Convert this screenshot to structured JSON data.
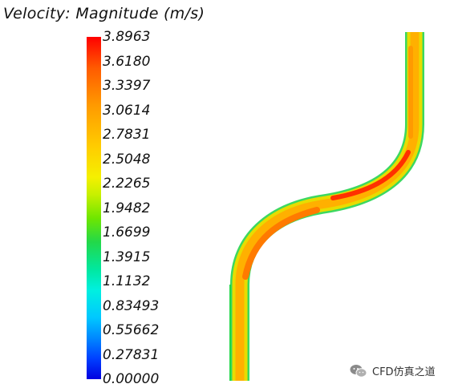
{
  "title": "Velocity: Magnitude (m/s)",
  "legend": {
    "ticks": [
      "3.8963",
      "3.6180",
      "3.3397",
      "3.0614",
      "2.7831",
      "2.5048",
      "2.2265",
      "1.9482",
      "1.6699",
      "1.3915",
      "1.1132",
      "0.83493",
      "0.55662",
      "0.27831",
      "0.00000"
    ]
  },
  "watermark": {
    "text": "CFD仿真之道",
    "icon": "wechat-icon"
  },
  "colors": {
    "max": "#ff0000",
    "high": "#ff8000",
    "mid": "#e8d800",
    "low": "#00e0a0",
    "min": "#0000e0"
  }
}
